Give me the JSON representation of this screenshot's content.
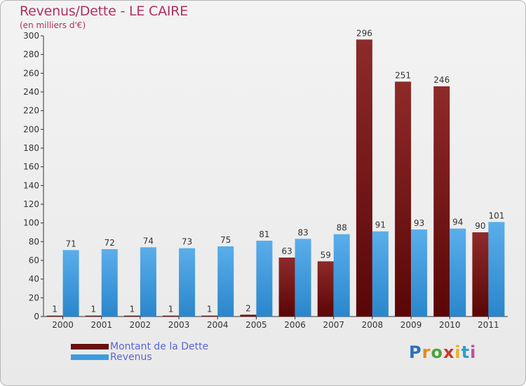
{
  "title": "Revenus/Dette - LE CAIRE",
  "subtitle": "(en milliers d'€)",
  "logo": {
    "letters": [
      "P",
      "r",
      "o",
      "x",
      "i",
      "t",
      "i"
    ],
    "colors": [
      "#2e6fc0",
      "#e88a1a",
      "#4aa53a",
      "#c83a2a",
      "#e8b21a",
      "#2e9fd0",
      "#c84aa0"
    ]
  },
  "colors": {
    "dette": "#7a1818",
    "revenus": "#3f9be0",
    "title": "#b03060",
    "legend_text": "#5a63d6"
  },
  "chart_data": {
    "type": "bar",
    "categories": [
      "2000",
      "2001",
      "2002",
      "2003",
      "2004",
      "2005",
      "2006",
      "2007",
      "2008",
      "2009",
      "2010",
      "2011"
    ],
    "series": [
      {
        "name": "Montant de la Dette",
        "values": [
          1,
          1,
          1,
          1,
          1,
          2,
          63,
          59,
          296,
          251,
          246,
          90
        ]
      },
      {
        "name": "Revenus",
        "values": [
          71,
          72,
          74,
          73,
          75,
          81,
          83,
          88,
          91,
          93,
          94,
          101
        ]
      }
    ],
    "ylim": [
      0,
      300
    ],
    "yticks": [
      0,
      20,
      40,
      60,
      80,
      100,
      120,
      140,
      160,
      180,
      200,
      220,
      240,
      260,
      280,
      300
    ],
    "grid": false,
    "legend_position": "bottom-left"
  }
}
